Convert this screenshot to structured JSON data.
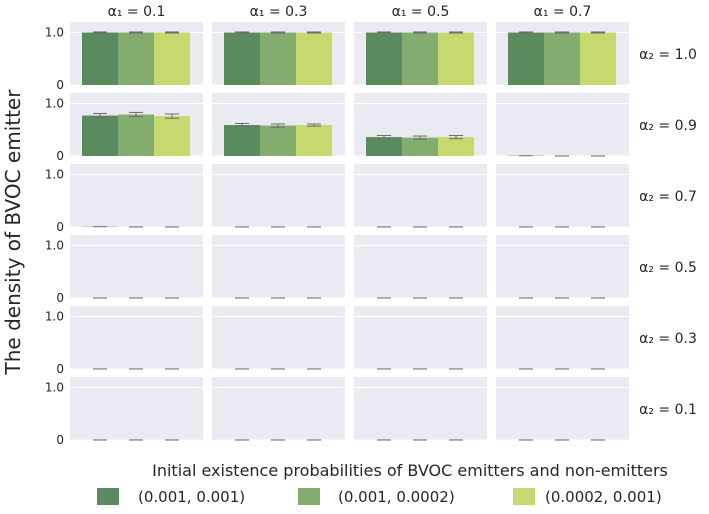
{
  "chart_data": {
    "type": "bar",
    "ylabel": "The density of BVOC emitter",
    "xlabel": "Initial existence probabilities of BVOC emitters and non-emitters",
    "ylim": [
      0,
      1.2
    ],
    "yticks": [
      {
        "value": 0,
        "label": "0"
      },
      {
        "value": 1.0,
        "label": "1.0"
      }
    ],
    "columns": [
      {
        "id": "c01",
        "label": "α₁ = 0.1"
      },
      {
        "id": "c03",
        "label": "α₁ = 0.3"
      },
      {
        "id": "c05",
        "label": "α₁ = 0.5"
      },
      {
        "id": "c07",
        "label": "α₁ = 0.7"
      }
    ],
    "rows": [
      {
        "id": "r10",
        "label": "α₂ = 1.0"
      },
      {
        "id": "r09",
        "label": "α₂ = 0.9"
      },
      {
        "id": "r07",
        "label": "α₂ = 0.7"
      },
      {
        "id": "r05",
        "label": "α₂ = 0.5"
      },
      {
        "id": "r03",
        "label": "α₂ = 0.3"
      },
      {
        "id": "r01",
        "label": "α₂ = 0.1"
      }
    ],
    "series": [
      {
        "name": "(0.001, 0.001)",
        "color": "#5a8b5e"
      },
      {
        "name": "(0.001, 0.0002)",
        "color": "#83ad6e"
      },
      {
        "name": "(0.0002, 0.001)",
        "color": "#c6d96f"
      }
    ],
    "values": [
      [
        [
          1.0,
          1.0,
          1.0
        ],
        [
          1.0,
          1.0,
          1.0
        ],
        [
          1.0,
          1.0,
          1.0
        ],
        [
          1.0,
          1.0,
          1.0
        ]
      ],
      [
        [
          0.77,
          0.79,
          0.76
        ],
        [
          0.59,
          0.58,
          0.59
        ],
        [
          0.36,
          0.35,
          0.36
        ],
        [
          0.005,
          0.0,
          0.0
        ]
      ],
      [
        [
          0.005,
          0.0,
          0.0
        ],
        [
          0.0,
          0.0,
          0.0
        ],
        [
          0.0,
          0.0,
          0.0
        ],
        [
          0.0,
          0.0,
          0.0
        ]
      ],
      [
        [
          0.0,
          0.0,
          0.0
        ],
        [
          0.0,
          0.0,
          0.0
        ],
        [
          0.0,
          0.0,
          0.0
        ],
        [
          0.0,
          0.0,
          0.0
        ]
      ],
      [
        [
          0.0,
          0.0,
          0.0
        ],
        [
          0.0,
          0.0,
          0.0
        ],
        [
          0.0,
          0.0,
          0.0
        ],
        [
          0.0,
          0.0,
          0.0
        ]
      ],
      [
        [
          0.0,
          0.0,
          0.0
        ],
        [
          0.0,
          0.0,
          0.0
        ],
        [
          0.0,
          0.0,
          0.0
        ],
        [
          0.0,
          0.0,
          0.0
        ]
      ]
    ],
    "errors": [
      [
        [
          0.01,
          0.01,
          0.01
        ],
        [
          0.01,
          0.01,
          0.01
        ],
        [
          0.01,
          0.01,
          0.01
        ],
        [
          0.01,
          0.01,
          0.01
        ]
      ],
      [
        [
          0.04,
          0.04,
          0.04
        ],
        [
          0.03,
          0.03,
          0.02
        ],
        [
          0.03,
          0.03,
          0.03
        ],
        [
          0.0,
          0.0,
          0.0
        ]
      ],
      [
        [
          0.0,
          0.0,
          0.0
        ],
        [
          0.0,
          0.0,
          0.0
        ],
        [
          0.0,
          0.0,
          0.0
        ],
        [
          0.0,
          0.0,
          0.0
        ]
      ],
      [
        [
          0.0,
          0.0,
          0.0
        ],
        [
          0.0,
          0.0,
          0.0
        ],
        [
          0.0,
          0.0,
          0.0
        ],
        [
          0.0,
          0.0,
          0.0
        ]
      ],
      [
        [
          0.0,
          0.0,
          0.0
        ],
        [
          0.0,
          0.0,
          0.0
        ],
        [
          0.0,
          0.0,
          0.0
        ],
        [
          0.0,
          0.0,
          0.0
        ]
      ],
      [
        [
          0.0,
          0.0,
          0.0
        ],
        [
          0.0,
          0.0,
          0.0
        ],
        [
          0.0,
          0.0,
          0.0
        ],
        [
          0.0,
          0.0,
          0.0
        ]
      ]
    ],
    "panel_background": "#eaeaf2",
    "grid_color": "#ffffff",
    "errorbar_color": "#6b6b6b",
    "legend_position": "bottom-center"
  }
}
